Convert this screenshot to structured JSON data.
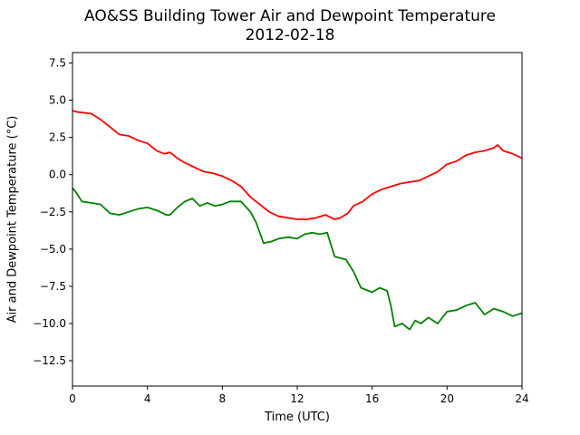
{
  "chart_data": {
    "type": "line",
    "title": "AO&SS Building Tower Air and Dewpoint Temperature",
    "subtitle": "2012-02-18",
    "xlabel": "Time (UTC)",
    "ylabel": "Air and Dewpoint Temperature (°C)",
    "xlim": [
      0,
      24
    ],
    "ylim": [
      -14.2,
      8.2
    ],
    "xticks": [
      0,
      4,
      8,
      12,
      16,
      20,
      24
    ],
    "yticks": [
      -12.5,
      -10.0,
      -7.5,
      -5.0,
      -2.5,
      0.0,
      2.5,
      5.0,
      7.5
    ],
    "ytick_labels": [
      "−12.5",
      "−10.0",
      "−7.5",
      "−5.0",
      "−2.5",
      "0.0",
      "2.5",
      "5.0",
      "7.5"
    ],
    "grid": false,
    "series": [
      {
        "color": "#ff0000",
        "x": [
          0,
          0.3,
          1,
          1.5,
          2,
          2.5,
          3,
          3.5,
          4,
          4.5,
          4.9,
          5.2,
          5.6,
          6,
          6.5,
          7,
          7.5,
          8,
          8.5,
          9,
          9.5,
          10,
          10.5,
          11,
          11.5,
          12,
          12.5,
          13,
          13.5,
          14,
          14.3,
          14.7,
          15,
          15.5,
          16,
          16.5,
          17,
          17.5,
          18,
          18.5,
          19,
          19.5,
          20,
          20.5,
          21,
          21.5,
          22,
          22.5,
          22.7,
          23,
          23.5,
          24
        ],
        "y": [
          4.3,
          4.2,
          4.1,
          3.7,
          3.2,
          2.7,
          2.6,
          2.3,
          2.1,
          1.6,
          1.4,
          1.5,
          1.1,
          0.8,
          0.5,
          0.2,
          0.1,
          -0.1,
          -0.4,
          -0.8,
          -1.5,
          -2.0,
          -2.5,
          -2.8,
          -2.9,
          -3.0,
          -3.0,
          -2.9,
          -2.7,
          -3.0,
          -2.9,
          -2.6,
          -2.1,
          -1.8,
          -1.3,
          -1.0,
          -0.8,
          -0.6,
          -0.5,
          -0.4,
          -0.1,
          0.2,
          0.7,
          0.9,
          1.3,
          1.5,
          1.6,
          1.8,
          2.0,
          1.6,
          1.4,
          1.1
        ]
      },
      {
        "color": "#008000",
        "x": [
          0,
          0.2,
          0.5,
          1,
          1.5,
          2,
          2.5,
          3,
          3.5,
          4,
          4.5,
          5,
          5.2,
          5.6,
          6,
          6.4,
          6.8,
          7.2,
          7.6,
          8,
          8.4,
          9,
          9.5,
          9.8,
          10.2,
          10.6,
          11,
          11.5,
          12,
          12.4,
          12.8,
          13.2,
          13.6,
          14,
          14.6,
          15,
          15.4,
          16,
          16.4,
          16.8,
          17,
          17.2,
          17.6,
          18,
          18.3,
          18.6,
          19,
          19.5,
          20,
          20.5,
          21,
          21.5,
          22,
          22.5,
          23,
          23.5,
          24
        ],
        "y": [
          -0.9,
          -1.2,
          -1.8,
          -1.9,
          -2.0,
          -2.6,
          -2.7,
          -2.5,
          -2.3,
          -2.2,
          -2.4,
          -2.7,
          -2.7,
          -2.2,
          -1.8,
          -1.6,
          -2.1,
          -1.9,
          -2.1,
          -2.0,
          -1.8,
          -1.8,
          -2.5,
          -3.2,
          -4.6,
          -4.5,
          -4.3,
          -4.2,
          -4.3,
          -4.0,
          -3.9,
          -4.0,
          -3.9,
          -5.5,
          -5.7,
          -6.5,
          -7.6,
          -7.9,
          -7.6,
          -7.8,
          -8.8,
          -10.2,
          -10.0,
          -10.4,
          -9.8,
          -10.0,
          -9.6,
          -10.0,
          -9.2,
          -9.1,
          -8.8,
          -8.6,
          -9.4,
          -9.0,
          -9.2,
          -9.5,
          -9.3
        ]
      }
    ]
  }
}
